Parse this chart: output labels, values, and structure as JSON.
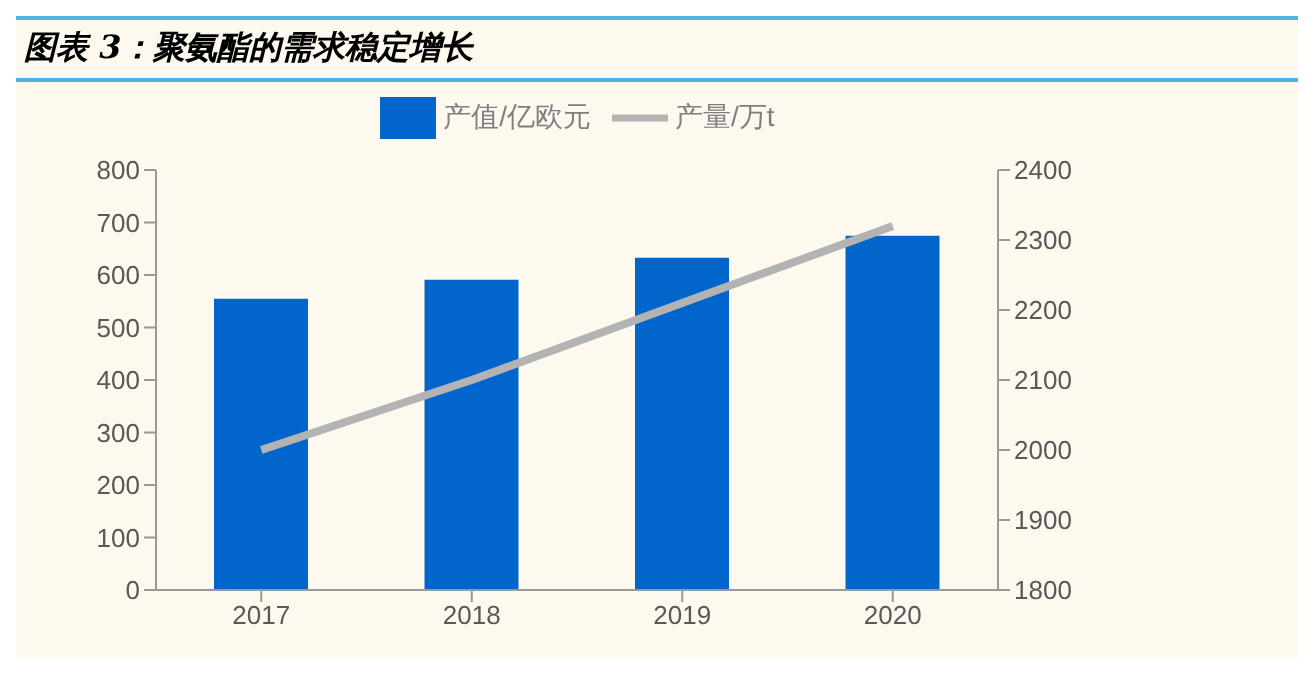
{
  "chart_data": {
    "type": "bar",
    "title": "图表 3：聚氨酯的需求稳定增长",
    "categories": [
      "2017",
      "2018",
      "2019",
      "2020"
    ],
    "series": [
      {
        "name": "产值/亿欧元",
        "color": "#0066cc",
        "values": [
          555,
          591,
          633,
          675
        ]
      },
      {
        "name": "产量/万t",
        "type": "line",
        "axis": "y2",
        "color": "#b3b3b3",
        "values": [
          2000,
          2100,
          2210,
          2320
        ]
      }
    ],
    "ylim": [
      0,
      800
    ],
    "yticks": [
      0,
      100,
      200,
      300,
      400,
      500,
      600,
      700,
      800
    ],
    "y2lim": [
      1800,
      2400
    ],
    "y2ticks": [
      1800,
      1900,
      2000,
      2100,
      2200,
      2300,
      2400
    ],
    "grid": false,
    "legend": "top",
    "marker": "none"
  }
}
